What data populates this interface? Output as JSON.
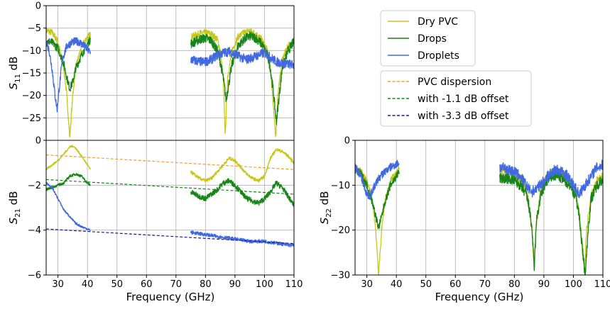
{
  "chart_data": [
    {
      "id": "s11",
      "type": "line",
      "ylabel_main": "S",
      "ylabel_sub": "11",
      "ylabel_unit": " dB",
      "xlim": [
        26,
        110
      ],
      "ylim": [
        -30,
        0
      ],
      "yticks": [
        "0",
        "−5",
        "−10",
        "−15",
        "−20",
        "−25"
      ],
      "ytick_values": [
        0,
        -5,
        -10,
        -15,
        -20,
        -25
      ],
      "grid": true,
      "series": [
        {
          "name": "Dry PVC",
          "color": "#c8c818",
          "noise": 0.25,
          "x": [
            26,
            28,
            30,
            32,
            33,
            34,
            35,
            36,
            38,
            40,
            41
          ],
          "y": [
            -5.5,
            -6,
            -8,
            -14,
            -20,
            -29.5,
            -20,
            -14,
            -9,
            -7,
            -6.5
          ]
        },
        {
          "name": "Dry PVC",
          "color": "#c8c818",
          "noise": 0.25,
          "x": [
            75,
            78,
            80,
            82,
            84,
            85,
            86,
            86.7,
            87.5,
            89,
            91,
            93,
            95,
            97,
            99,
            101,
            102,
            103,
            103.8,
            104.5,
            106,
            108,
            110
          ],
          "y": [
            -7,
            -6.2,
            -6,
            -6.3,
            -7.5,
            -10,
            -16,
            -29,
            -16,
            -10,
            -7,
            -6,
            -5.6,
            -6.2,
            -7.5,
            -10,
            -14,
            -22,
            -30,
            -20,
            -12,
            -9,
            -8
          ]
        },
        {
          "name": "Drops",
          "color": "#178517",
          "noise": 0.3,
          "x": [
            26,
            28,
            30,
            32,
            33,
            34,
            35,
            36,
            38,
            40,
            41
          ],
          "y": [
            -7.8,
            -8.2,
            -9.5,
            -13,
            -16,
            -18.5,
            -17,
            -14,
            -11,
            -8.5,
            -7.5
          ]
        },
        {
          "name": "Drops",
          "color": "#178517",
          "noise": 0.35,
          "x": [
            75,
            78,
            80,
            82,
            84,
            85,
            86,
            87,
            88,
            89,
            91,
            93,
            95,
            97,
            99,
            101,
            102,
            103,
            104,
            105,
            106,
            108,
            110
          ],
          "y": [
            -8.5,
            -7.5,
            -7.2,
            -7.8,
            -10,
            -12.5,
            -16,
            -21,
            -17,
            -13,
            -9,
            -7.5,
            -6.8,
            -7.2,
            -8.5,
            -11,
            -14,
            -19,
            -26,
            -20,
            -14,
            -10,
            -8
          ]
        },
        {
          "name": "Droplets",
          "color": "#4169e1",
          "noise": 0.3,
          "x": [
            26,
            27,
            28,
            29,
            29.7,
            30.5,
            31.5,
            33,
            35,
            37,
            39,
            41
          ],
          "y": [
            -8,
            -10,
            -14,
            -20,
            -23,
            -18,
            -12,
            -9,
            -8,
            -8,
            -9,
            -10.5
          ]
        },
        {
          "name": "Droplets",
          "color": "#4169e1",
          "noise": 0.35,
          "x": [
            75,
            78,
            80,
            82,
            84,
            86,
            88,
            90,
            92,
            94,
            96,
            98,
            100,
            102,
            104,
            106,
            108,
            110
          ],
          "y": [
            -12,
            -12.5,
            -12.5,
            -12,
            -11,
            -10.5,
            -10.2,
            -10.8,
            -11.5,
            -12,
            -11.5,
            -11,
            -10.5,
            -11.5,
            -12.5,
            -12.8,
            -13,
            -13.2
          ]
        }
      ]
    },
    {
      "id": "s21",
      "type": "line",
      "xlabel": "Frequency (GHz)",
      "ylabel_main": "S",
      "ylabel_sub": "21",
      "ylabel_unit": " dB",
      "xlim": [
        26,
        110
      ],
      "ylim": [
        -6,
        0
      ],
      "xticks": [
        "30",
        "40",
        "50",
        "60",
        "70",
        "80",
        "90",
        "100",
        "110"
      ],
      "xtick_values": [
        30,
        40,
        50,
        60,
        70,
        80,
        90,
        100,
        110
      ],
      "yticks": [
        "0",
        "−2",
        "−4",
        "−6"
      ],
      "ytick_values": [
        0,
        -2,
        -4,
        -6
      ],
      "grid": true,
      "series": [
        {
          "name": "Dry PVC",
          "color": "#c8c818",
          "noise": 0.08,
          "x": [
            26,
            28,
            30,
            32,
            34,
            35,
            36,
            38,
            40,
            41
          ],
          "y": [
            -1.3,
            -1.1,
            -0.9,
            -0.6,
            -0.3,
            -0.25,
            -0.35,
            -0.7,
            -1.1,
            -1.3
          ]
        },
        {
          "name": "Dry PVC",
          "color": "#c8c818",
          "noise": 0.12,
          "x": [
            75,
            78,
            80,
            82,
            84,
            86,
            88,
            90,
            92,
            94,
            96,
            98,
            100,
            101,
            102,
            104,
            106,
            108,
            110
          ],
          "y": [
            -1.4,
            -1.7,
            -1.8,
            -1.7,
            -1.4,
            -1.1,
            -0.8,
            -0.9,
            -1.2,
            -1.5,
            -1.7,
            -1.8,
            -1.6,
            -1.2,
            -0.8,
            -0.4,
            -0.5,
            -0.7,
            -1.0
          ]
        },
        {
          "name": "Drops",
          "color": "#178517",
          "noise": 0.1,
          "x": [
            26,
            28,
            30,
            32,
            34,
            36,
            38,
            40,
            41
          ],
          "y": [
            -2.2,
            -2.1,
            -2.0,
            -1.9,
            -1.6,
            -1.5,
            -1.6,
            -1.9,
            -2.0
          ]
        },
        {
          "name": "Drops",
          "color": "#178517",
          "noise": 0.2,
          "x": [
            75,
            78,
            80,
            82,
            84,
            86,
            88,
            90,
            92,
            94,
            96,
            98,
            100,
            102,
            104,
            106,
            108,
            110
          ],
          "y": [
            -2.3,
            -2.5,
            -2.6,
            -2.4,
            -2.2,
            -1.9,
            -1.8,
            -2.0,
            -2.3,
            -2.6,
            -2.7,
            -2.8,
            -2.6,
            -2.3,
            -1.9,
            -2.1,
            -2.5,
            -2.9
          ]
        },
        {
          "name": "Droplets",
          "color": "#4169e1",
          "noise": 0.08,
          "x": [
            26,
            28,
            30,
            32,
            34,
            36,
            38,
            40,
            41
          ],
          "y": [
            -1.9,
            -2.1,
            -2.6,
            -3.1,
            -3.4,
            -3.7,
            -3.85,
            -3.95,
            -4.0
          ]
        },
        {
          "name": "Droplets",
          "color": "#4169e1",
          "noise": 0.13,
          "x": [
            75,
            80,
            85,
            90,
            95,
            100,
            105,
            110
          ],
          "y": [
            -4.1,
            -4.2,
            -4.3,
            -4.4,
            -4.5,
            -4.5,
            -4.6,
            -4.7
          ]
        },
        {
          "name": "PVC dispersion",
          "color": "#f0a030",
          "dashed": true,
          "x": [
            26,
            110
          ],
          "y": [
            -0.65,
            -1.3
          ]
        },
        {
          "name": "with -1.1 dB offset",
          "color": "#178517",
          "dashed": true,
          "x": [
            26,
            110
          ],
          "y": [
            -1.75,
            -2.4
          ]
        },
        {
          "name": "with -3.3 dB offset",
          "color": "#1a1a8c",
          "dashed": true,
          "x": [
            26,
            110
          ],
          "y": [
            -3.95,
            -4.6
          ]
        }
      ]
    },
    {
      "id": "s22",
      "type": "line",
      "xlabel": "Frequency (GHz)",
      "ylabel_main": "S",
      "ylabel_sub": "22",
      "ylabel_unit": " dB",
      "xlim": [
        26,
        110
      ],
      "ylim": [
        -30,
        0
      ],
      "xticks": [
        "30",
        "40",
        "50",
        "60",
        "70",
        "80",
        "90",
        "100",
        "110"
      ],
      "xtick_values": [
        30,
        40,
        50,
        60,
        70,
        80,
        90,
        100,
        110
      ],
      "yticks": [
        "0",
        "−10",
        "−20",
        "−30"
      ],
      "ytick_values": [
        0,
        -10,
        -20,
        -30
      ],
      "grid": true,
      "series": [
        {
          "name": "Dry PVC",
          "color": "#c8c818",
          "noise": 0.25,
          "x": [
            26,
            28,
            30,
            32,
            33,
            34,
            35,
            36,
            38,
            40,
            41
          ],
          "y": [
            -6,
            -7,
            -9,
            -14,
            -20,
            -30,
            -20,
            -14,
            -9,
            -7,
            -6.5
          ]
        },
        {
          "name": "Dry PVC",
          "color": "#c8c818",
          "noise": 0.3,
          "x": [
            75,
            78,
            80,
            82,
            84,
            85,
            86,
            86.6,
            87.5,
            89,
            91,
            93,
            95,
            97,
            99,
            101,
            102,
            103,
            103.8,
            104.5,
            106,
            108,
            110
          ],
          "y": [
            -7,
            -7,
            -7.5,
            -8.5,
            -11,
            -14,
            -20,
            -28,
            -18,
            -11,
            -8,
            -7,
            -7,
            -8,
            -9,
            -12,
            -16,
            -23,
            -29,
            -20,
            -12,
            -9,
            -8
          ]
        },
        {
          "name": "Drops",
          "color": "#178517",
          "noise": 0.3,
          "x": [
            26,
            28,
            30,
            32,
            33,
            34,
            35,
            36,
            38,
            40,
            41
          ],
          "y": [
            -6.5,
            -7.5,
            -10,
            -14,
            -17,
            -19.5,
            -17,
            -14,
            -10,
            -8,
            -7
          ]
        },
        {
          "name": "Drops",
          "color": "#178517",
          "noise": 0.4,
          "x": [
            75,
            78,
            80,
            82,
            84,
            85,
            86,
            86.7,
            87.5,
            89,
            91,
            93,
            95,
            97,
            99,
            101,
            102,
            103,
            104,
            105,
            106,
            108,
            110
          ],
          "y": [
            -8.5,
            -8.5,
            -9,
            -10,
            -12,
            -15,
            -20,
            -29,
            -18,
            -12,
            -9,
            -8,
            -8,
            -9,
            -10,
            -13,
            -17,
            -24,
            -30,
            -20,
            -13,
            -10,
            -8.5
          ]
        },
        {
          "name": "Droplets",
          "color": "#4169e1",
          "noise": 0.3,
          "x": [
            26,
            28,
            29,
            30,
            31,
            32,
            34,
            36,
            38,
            40,
            41
          ],
          "y": [
            -6,
            -8,
            -10,
            -12,
            -12.5,
            -11,
            -8.5,
            -7,
            -6,
            -5.3,
            -5
          ]
        },
        {
          "name": "Droplets",
          "color": "#4169e1",
          "noise": 0.4,
          "x": [
            75,
            78,
            80,
            82,
            84,
            85,
            86,
            88,
            90,
            92,
            94,
            96,
            98,
            100,
            102,
            104,
            106,
            108,
            110
          ],
          "y": [
            -6,
            -6.5,
            -7,
            -8,
            -10,
            -11,
            -11.5,
            -10.5,
            -9,
            -7.5,
            -6.5,
            -7,
            -8,
            -10,
            -12,
            -10,
            -8,
            -6,
            -5.5
          ]
        }
      ]
    }
  ],
  "legend1": {
    "entries": [
      {
        "label": "Dry PVC",
        "color": "#c8c818",
        "dashed": false
      },
      {
        "label": "Drops",
        "color": "#178517",
        "dashed": false
      },
      {
        "label": "Droplets",
        "color": "#4169e1",
        "dashed": false
      }
    ]
  },
  "legend2": {
    "entries": [
      {
        "label": "PVC dispersion",
        "color": "#f0a030",
        "dashed": true
      },
      {
        "label": "with -1.1 dB offset",
        "color": "#178517",
        "dashed": true
      },
      {
        "label": "with -3.3 dB offset",
        "color": "#1a1a8c",
        "dashed": true
      }
    ]
  }
}
